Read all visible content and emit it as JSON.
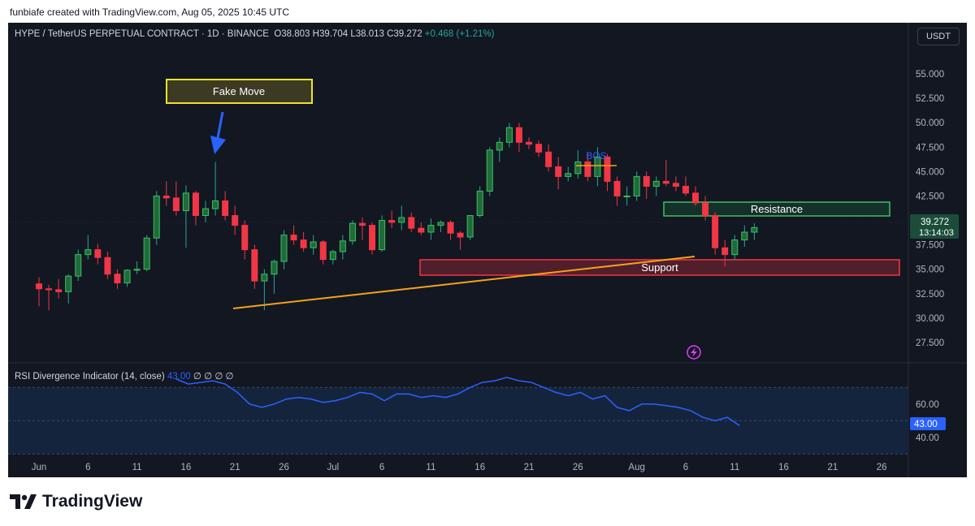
{
  "header": {
    "credit": "funbiafe created with TradingView.com, Aug 05, 2025 10:45 UTC"
  },
  "legend": {
    "symbol": "HYPE / TetherUS PERPETUAL CONTRACT · 1D · BINANCE",
    "o": "O38.803",
    "h": "H39.704",
    "l": "L38.013",
    "c": "C39.272",
    "change": "+0.468 (+1.21%)"
  },
  "currency_button": "USDT",
  "price_badge": {
    "price": "39.272",
    "countdown": "13:14:03"
  },
  "rsi_panel": {
    "label": "RSI Divergence Indicator (14, close)",
    "value": "43.00",
    "extras": "∅ ∅ ∅ ∅",
    "badge": "43.00"
  },
  "footer": {
    "brand": "TradingView"
  },
  "colors": {
    "up": "#26a69a",
    "down": "#f23645",
    "up_fill": "#1f6b3a",
    "rsi_line": "#2962ff",
    "trendline": "#f7a21b",
    "background": "#121722"
  },
  "chart_data": {
    "type": "candlestick",
    "y_axis_labels": [
      "55.000",
      "52.500",
      "50.000",
      "47.500",
      "45.000",
      "42.500",
      "40.000",
      "37.500",
      "35.000",
      "32.500",
      "30.000",
      "27.500"
    ],
    "ylim": [
      25.5,
      57.5
    ],
    "x_axis_labels": [
      {
        "label": "Jun",
        "day": 0
      },
      {
        "label": "6",
        "day": 5
      },
      {
        "label": "11",
        "day": 10
      },
      {
        "label": "16",
        "day": 15
      },
      {
        "label": "21",
        "day": 20
      },
      {
        "label": "26",
        "day": 25
      },
      {
        "label": "Jul",
        "day": 30
      },
      {
        "label": "6",
        "day": 35
      },
      {
        "label": "11",
        "day": 40
      },
      {
        "label": "16",
        "day": 45
      },
      {
        "label": "21",
        "day": 50
      },
      {
        "label": "26",
        "day": 55
      },
      {
        "label": "Aug",
        "day": 61
      },
      {
        "label": "6",
        "day": 66
      },
      {
        "label": "11",
        "day": 71
      },
      {
        "label": "16",
        "day": 76
      },
      {
        "label": "21",
        "day": 81
      },
      {
        "label": "26",
        "day": 86
      }
    ],
    "candles": [
      {
        "o": 33.5,
        "h": 34.2,
        "l": 31.2,
        "c": 33.0
      },
      {
        "o": 33.0,
        "h": 33.4,
        "l": 30.8,
        "c": 32.9
      },
      {
        "o": 32.9,
        "h": 34.0,
        "l": 32.0,
        "c": 32.7
      },
      {
        "o": 32.7,
        "h": 34.5,
        "l": 31.5,
        "c": 34.3
      },
      {
        "o": 34.3,
        "h": 37.0,
        "l": 33.8,
        "c": 36.5
      },
      {
        "o": 36.5,
        "h": 38.5,
        "l": 36.0,
        "c": 37.0
      },
      {
        "o": 37.0,
        "h": 37.6,
        "l": 35.5,
        "c": 36.2
      },
      {
        "o": 36.2,
        "h": 36.8,
        "l": 34.0,
        "c": 34.5
      },
      {
        "o": 34.5,
        "h": 35.0,
        "l": 33.0,
        "c": 33.6
      },
      {
        "o": 33.6,
        "h": 35.0,
        "l": 33.2,
        "c": 34.9
      },
      {
        "o": 34.9,
        "h": 35.8,
        "l": 34.5,
        "c": 35.0
      },
      {
        "o": 35.0,
        "h": 38.5,
        "l": 34.8,
        "c": 38.2
      },
      {
        "o": 38.2,
        "h": 43.0,
        "l": 37.5,
        "c": 42.5
      },
      {
        "o": 42.5,
        "h": 44.0,
        "l": 41.5,
        "c": 42.3
      },
      {
        "o": 42.3,
        "h": 44.0,
        "l": 40.5,
        "c": 41.0
      },
      {
        "o": 41.0,
        "h": 43.6,
        "l": 37.2,
        "c": 42.8
      },
      {
        "o": 42.8,
        "h": 43.0,
        "l": 39.5,
        "c": 40.5
      },
      {
        "o": 40.5,
        "h": 42.0,
        "l": 39.8,
        "c": 41.2
      },
      {
        "o": 41.2,
        "h": 46.0,
        "l": 40.5,
        "c": 42.0
      },
      {
        "o": 42.0,
        "h": 43.0,
        "l": 40.0,
        "c": 40.5
      },
      {
        "o": 40.5,
        "h": 41.5,
        "l": 38.5,
        "c": 39.5
      },
      {
        "o": 39.5,
        "h": 40.0,
        "l": 36.0,
        "c": 37.0
      },
      {
        "o": 37.0,
        "h": 37.5,
        "l": 33.0,
        "c": 33.8
      },
      {
        "o": 33.8,
        "h": 35.0,
        "l": 30.8,
        "c": 34.5
      },
      {
        "o": 34.5,
        "h": 36.0,
        "l": 32.5,
        "c": 35.8
      },
      {
        "o": 35.8,
        "h": 39.0,
        "l": 35.0,
        "c": 38.5
      },
      {
        "o": 38.5,
        "h": 39.5,
        "l": 37.5,
        "c": 38.0
      },
      {
        "o": 38.0,
        "h": 38.8,
        "l": 36.8,
        "c": 37.2
      },
      {
        "o": 37.2,
        "h": 38.5,
        "l": 36.5,
        "c": 37.8
      },
      {
        "o": 37.8,
        "h": 38.0,
        "l": 35.5,
        "c": 36.0
      },
      {
        "o": 36.0,
        "h": 37.0,
        "l": 35.5,
        "c": 36.8
      },
      {
        "o": 36.8,
        "h": 38.5,
        "l": 36.0,
        "c": 37.9
      },
      {
        "o": 37.9,
        "h": 40.0,
        "l": 37.5,
        "c": 39.7
      },
      {
        "o": 39.7,
        "h": 40.3,
        "l": 38.0,
        "c": 39.5
      },
      {
        "o": 39.5,
        "h": 39.8,
        "l": 36.5,
        "c": 37.0
      },
      {
        "o": 37.0,
        "h": 40.5,
        "l": 36.8,
        "c": 40.0
      },
      {
        "o": 40.0,
        "h": 41.0,
        "l": 39.2,
        "c": 39.8
      },
      {
        "o": 39.8,
        "h": 41.5,
        "l": 39.0,
        "c": 40.3
      },
      {
        "o": 40.3,
        "h": 40.8,
        "l": 38.8,
        "c": 39.2
      },
      {
        "o": 39.2,
        "h": 39.8,
        "l": 38.5,
        "c": 38.8
      },
      {
        "o": 38.8,
        "h": 40.2,
        "l": 38.0,
        "c": 39.5
      },
      {
        "o": 39.5,
        "h": 40.0,
        "l": 38.8,
        "c": 39.8
      },
      {
        "o": 39.8,
        "h": 40.0,
        "l": 38.0,
        "c": 38.7
      },
      {
        "o": 38.7,
        "h": 38.9,
        "l": 37.0,
        "c": 38.3
      },
      {
        "o": 38.3,
        "h": 40.5,
        "l": 38.0,
        "c": 40.5
      },
      {
        "o": 40.5,
        "h": 43.5,
        "l": 40.3,
        "c": 43.0
      },
      {
        "o": 43.0,
        "h": 47.5,
        "l": 42.5,
        "c": 47.2
      },
      {
        "o": 47.2,
        "h": 48.5,
        "l": 46.0,
        "c": 48.0
      },
      {
        "o": 48.0,
        "h": 50.0,
        "l": 47.5,
        "c": 49.5
      },
      {
        "o": 49.5,
        "h": 50.0,
        "l": 47.0,
        "c": 48.0
      },
      {
        "o": 48.0,
        "h": 48.5,
        "l": 47.3,
        "c": 47.8
      },
      {
        "o": 47.8,
        "h": 48.2,
        "l": 46.5,
        "c": 47.0
      },
      {
        "o": 47.0,
        "h": 47.8,
        "l": 45.0,
        "c": 45.5
      },
      {
        "o": 45.5,
        "h": 46.5,
        "l": 43.2,
        "c": 44.5
      },
      {
        "o": 44.5,
        "h": 45.5,
        "l": 44.0,
        "c": 44.8
      },
      {
        "o": 44.8,
        "h": 47.2,
        "l": 44.3,
        "c": 46.0
      },
      {
        "o": 46.0,
        "h": 47.0,
        "l": 44.0,
        "c": 44.5
      },
      {
        "o": 44.5,
        "h": 47.5,
        "l": 43.5,
        "c": 46.5
      },
      {
        "o": 46.5,
        "h": 46.8,
        "l": 43.0,
        "c": 44.0
      },
      {
        "o": 44.0,
        "h": 44.5,
        "l": 41.5,
        "c": 42.5
      },
      {
        "o": 42.5,
        "h": 43.5,
        "l": 41.5,
        "c": 42.5
      },
      {
        "o": 42.5,
        "h": 45.0,
        "l": 42.0,
        "c": 44.5
      },
      {
        "o": 44.5,
        "h": 45.0,
        "l": 42.2,
        "c": 43.5
      },
      {
        "o": 43.5,
        "h": 44.5,
        "l": 42.5,
        "c": 44.0
      },
      {
        "o": 44.0,
        "h": 46.2,
        "l": 43.5,
        "c": 43.8
      },
      {
        "o": 43.8,
        "h": 44.5,
        "l": 43.0,
        "c": 43.5
      },
      {
        "o": 43.5,
        "h": 44.5,
        "l": 42.5,
        "c": 42.8
      },
      {
        "o": 42.8,
        "h": 43.5,
        "l": 41.5,
        "c": 41.8
      },
      {
        "o": 41.8,
        "h": 42.5,
        "l": 40.0,
        "c": 40.5
      },
      {
        "o": 40.5,
        "h": 40.8,
        "l": 36.5,
        "c": 37.2
      },
      {
        "o": 37.2,
        "h": 38.0,
        "l": 35.3,
        "c": 36.5
      },
      {
        "o": 36.5,
        "h": 38.5,
        "l": 36.0,
        "c": 38.0
      },
      {
        "o": 38.0,
        "h": 39.5,
        "l": 37.3,
        "c": 38.8
      },
      {
        "o": 38.8,
        "h": 39.7,
        "l": 38.0,
        "c": 39.27
      }
    ],
    "rsi": {
      "ylim": [
        35,
        75
      ],
      "y_axis_labels": [
        "60.00",
        "40.00"
      ],
      "values": [
        75,
        72,
        73,
        74,
        72,
        67,
        60,
        58,
        60,
        63,
        64,
        63,
        61,
        62,
        64,
        67,
        66,
        62,
        66,
        66,
        64,
        65,
        64,
        66,
        70,
        73,
        74,
        76,
        74,
        73,
        70,
        67,
        65,
        67,
        63,
        65,
        58,
        56,
        60,
        60,
        59,
        58,
        56,
        52,
        50,
        52,
        47
      ],
      "start_day": 14
    },
    "annotations": {
      "fake_move": "Fake Move",
      "bos": "BOS",
      "resistance": "Resistance",
      "support": "Support"
    }
  }
}
